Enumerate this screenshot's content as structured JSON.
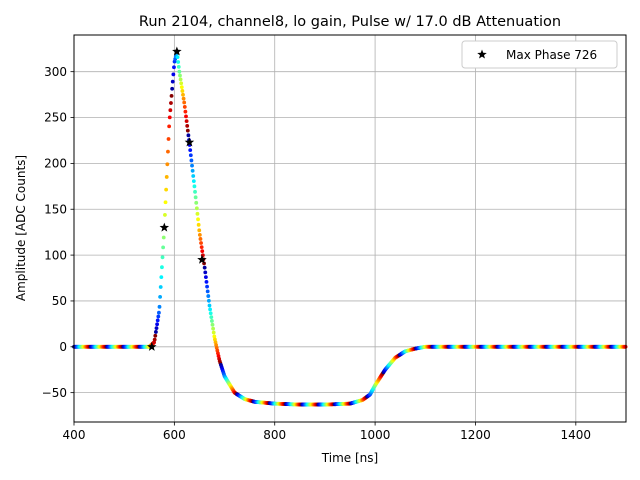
{
  "chart_data": {
    "type": "scatter",
    "title": "Run 2104, channel8, lo gain, Pulse w/ 17.0 dB Attenuation",
    "xlabel": "Time [ns]",
    "ylabel": "Amplitude [ADC Counts]",
    "xlim": [
      400,
      1500
    ],
    "ylim": [
      -82,
      340
    ],
    "x_ticks": [
      400,
      600,
      800,
      1000,
      1200,
      1400
    ],
    "y_ticks": [
      -50,
      0,
      50,
      100,
      150,
      200,
      250,
      300
    ],
    "grid": true,
    "legend_position": "top-right",
    "colormap": "jet",
    "pulse_curve": {
      "x": [
        400,
        550,
        560,
        570,
        580,
        590,
        600,
        605,
        610,
        620,
        630,
        640,
        650,
        660,
        670,
        680,
        690,
        700,
        720,
        740,
        760,
        780,
        800,
        850,
        900,
        950,
        975,
        990,
        1000,
        1020,
        1040,
        1060,
        1080,
        1100,
        1150,
        1200,
        1300,
        1400,
        1500
      ],
      "y": [
        0,
        0,
        5,
        40,
        130,
        245,
        310,
        322,
        300,
        265,
        222,
        175,
        125,
        88,
        45,
        10,
        -15,
        -32,
        -50,
        -57,
        -60,
        -61,
        -62,
        -63,
        -63,
        -62,
        -58,
        -52,
        -42,
        -25,
        -12,
        -5,
        -2,
        0,
        0,
        0,
        0,
        0,
        0
      ]
    },
    "series": [
      {
        "name": "Max Phase 726",
        "marker": "star",
        "x": [
          555,
          580,
          605,
          630,
          655
        ],
        "y": [
          0,
          130,
          322,
          223,
          95
        ]
      }
    ]
  }
}
